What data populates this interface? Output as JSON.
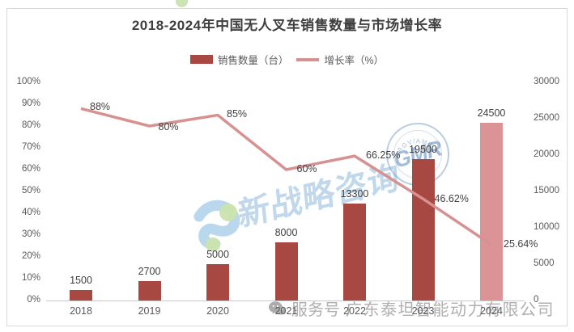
{
  "title": "2018-2024年中国无人叉车销售数量与市场增长率",
  "legend": [
    {
      "label": "销售数量（台）",
      "type": "bar",
      "color": "#a84842"
    },
    {
      "label": "增长率（%）",
      "type": "line",
      "color": "#d79191"
    }
  ],
  "chart_data": {
    "type": "bar+line",
    "title": "2018-2024年中国无人叉车销售数量与市场增长率",
    "categories": [
      "2018",
      "2019",
      "2020",
      "2021",
      "2022",
      "2023",
      "2024"
    ],
    "series": [
      {
        "name": "销售数量（台）",
        "type": "bar",
        "axis": "right",
        "values": [
          1500,
          2700,
          5000,
          8000,
          13300,
          19500,
          24500
        ],
        "labels": [
          "1500",
          "2700",
          "5000",
          "8000",
          "13300",
          "19500",
          "24500"
        ],
        "colors": [
          "#a84842",
          "#a84842",
          "#a84842",
          "#a84842",
          "#a84842",
          "#a84842",
          "#db9396"
        ]
      },
      {
        "name": "增长率（%）",
        "type": "line",
        "axis": "left",
        "values": [
          88,
          80,
          85,
          60,
          66.25,
          46.62,
          25.64
        ],
        "labels": [
          "88%",
          "80%",
          "85%",
          "60%",
          "66.25%",
          "46.62%",
          "25.64%"
        ],
        "color": "#d79191"
      }
    ],
    "left_axis": {
      "min": 0,
      "max": 100,
      "step": 10,
      "unit": "%",
      "tick_labels": [
        "0%",
        "10%",
        "20%",
        "30%",
        "40%",
        "50%",
        "60%",
        "70%",
        "80%",
        "90%",
        "100%"
      ]
    },
    "right_axis": {
      "min": 0,
      "max": 30000,
      "step": 5000,
      "tick_labels": [
        "0",
        "5000",
        "10000",
        "15000",
        "20000",
        "25000",
        "30000"
      ]
    },
    "grid": false,
    "legend_position": "top"
  },
  "watermarks": {
    "center_text": "新战略咨询",
    "stamp_text": "GMR",
    "stamp_arc_text": "AGV/AMR",
    "bottom_prefix": "服务号",
    "bottom_company": "广东泰坦智能动力有限公司"
  },
  "colors": {
    "bar": "#a84842",
    "bar_forecast": "#db9396",
    "line": "#d79191",
    "axis_text": "#595959",
    "label_text": "#3f3f3f",
    "frame_border": "#d9d9d9",
    "watermark_blue": "#8db7dd",
    "watermark_gray": "#ababab"
  }
}
